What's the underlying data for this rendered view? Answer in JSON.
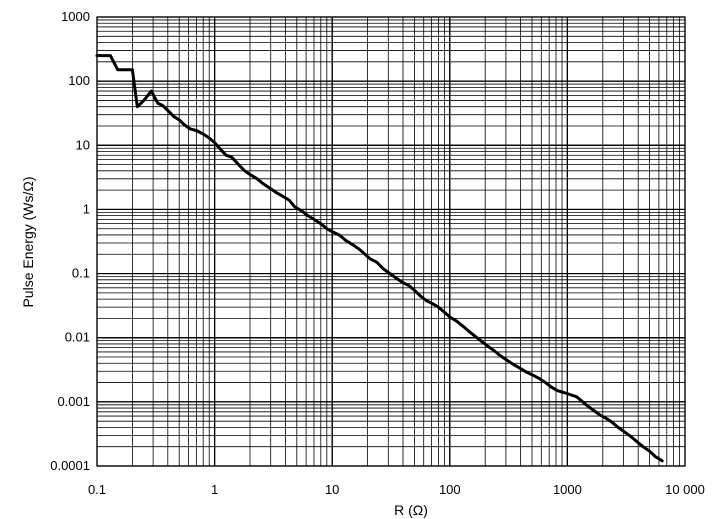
{
  "chart_data": {
    "type": "line",
    "title": "",
    "xlabel": "R (Ω)",
    "ylabel": "Pulse Energy (Ws/Ω)",
    "x_scale": "log",
    "y_scale": "log",
    "xlim": [
      0.1,
      10000
    ],
    "ylim": [
      0.0001,
      1000
    ],
    "x_ticks": [
      "0.1",
      "1",
      "10",
      "100",
      "1000",
      "10 000"
    ],
    "y_ticks": [
      "0.0001",
      "0.001",
      "0.01",
      "0.1",
      "1",
      "10",
      "100",
      "1000"
    ],
    "grid": true,
    "legend": "none",
    "colors": {
      "line": "#000000",
      "grid": "#000000"
    },
    "series": [
      {
        "x": [
          0.1,
          0.13,
          0.15,
          0.2,
          0.22,
          0.25,
          0.29,
          0.31,
          0.33,
          0.36,
          0.4,
          0.45,
          0.5,
          0.55,
          0.62,
          0.7,
          0.8,
          0.9,
          1.0,
          1.1,
          1.25,
          1.4,
          1.6,
          1.8,
          2.0,
          2.3,
          2.6,
          3.0,
          3.4,
          3.8,
          4.3,
          4.8,
          5.5,
          6.2,
          7.0,
          8.0,
          9.0,
          10,
          11.5,
          13,
          15,
          17,
          19,
          21,
          24,
          27,
          31,
          35,
          40,
          45,
          50,
          56,
          63,
          71,
          80,
          90,
          100,
          115,
          130,
          150,
          170,
          190,
          215,
          240,
          270,
          310,
          350,
          400,
          450,
          510,
          580,
          650,
          730,
          820,
          930,
          1050,
          1200,
          1350,
          1500,
          1700,
          1900,
          2150,
          2400,
          2700,
          3050,
          3450,
          3900,
          4400,
          5000,
          5600,
          6400
        ],
        "y": [
          250,
          250,
          150,
          150,
          40,
          50,
          70,
          55,
          45,
          42,
          35,
          28,
          25,
          21,
          18,
          17,
          15,
          13,
          11,
          9,
          7,
          6.5,
          5,
          4,
          3.5,
          3,
          2.5,
          2.1,
          1.8,
          1.6,
          1.4,
          1.1,
          0.95,
          0.8,
          0.7,
          0.6,
          0.5,
          0.45,
          0.4,
          0.33,
          0.28,
          0.24,
          0.2,
          0.17,
          0.15,
          0.12,
          0.1,
          0.085,
          0.072,
          0.065,
          0.055,
          0.045,
          0.038,
          0.034,
          0.03,
          0.025,
          0.021,
          0.018,
          0.015,
          0.012,
          0.01,
          0.0085,
          0.0072,
          0.0062,
          0.0052,
          0.0044,
          0.0038,
          0.0033,
          0.0029,
          0.0026,
          0.0023,
          0.002,
          0.0017,
          0.0015,
          0.0014,
          0.0013,
          0.0012,
          0.001,
          0.00085,
          0.00072,
          0.00062,
          0.00055,
          0.00048,
          0.0004,
          0.00034,
          0.00029,
          0.00024,
          0.0002,
          0.00017,
          0.00014,
          0.00012
        ]
      }
    ]
  }
}
